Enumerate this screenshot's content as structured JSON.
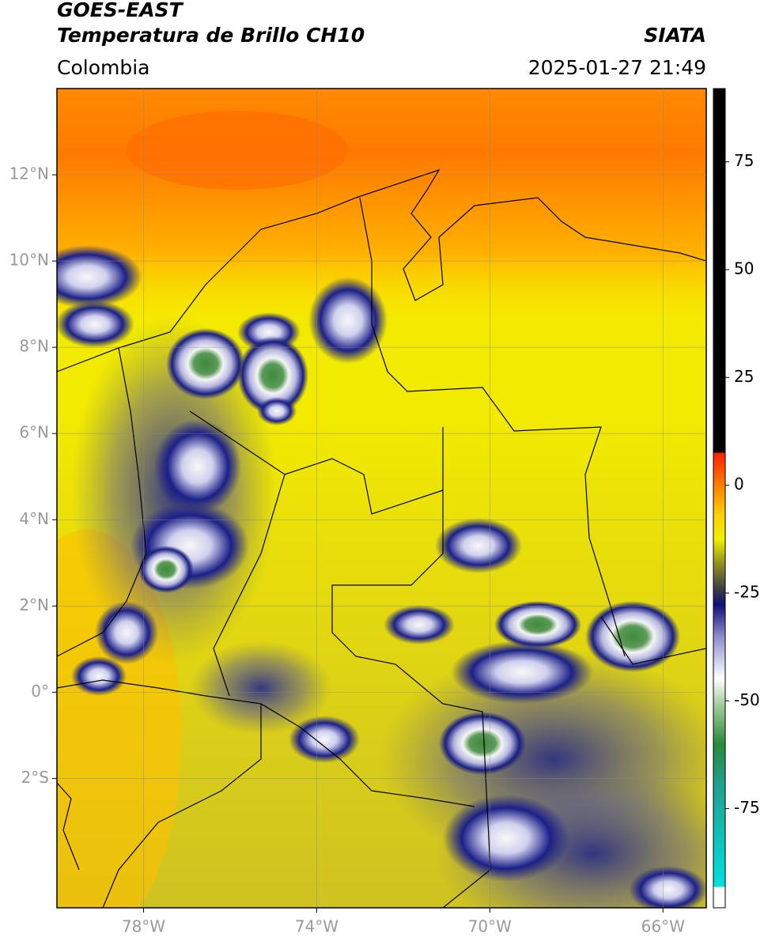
{
  "header": {
    "satellite": "GOES-EAST",
    "product": "Temperatura de Brillo CH10",
    "org": "SIATA",
    "region": "Colombia",
    "datetime": "2025-01-27 21:49"
  },
  "map": {
    "xlim": [
      -80,
      -65
    ],
    "ylim": [
      -5,
      14
    ],
    "grid": true,
    "xticks": [
      {
        "value": -78,
        "label": "78°W"
      },
      {
        "value": -74,
        "label": "74°W"
      },
      {
        "value": -70,
        "label": "70°W"
      },
      {
        "value": -66,
        "label": "66°W"
      }
    ],
    "yticks": [
      {
        "value": 12,
        "label": "12°N"
      },
      {
        "value": 10,
        "label": "10°N"
      },
      {
        "value": 8,
        "label": "8°N"
      },
      {
        "value": 6,
        "label": "6°N"
      },
      {
        "value": 4,
        "label": "4°N"
      },
      {
        "value": 2,
        "label": "2°N"
      },
      {
        "value": 0,
        "label": "0°"
      },
      {
        "value": -2,
        "label": "2°S"
      }
    ]
  },
  "colorbar": {
    "lim": [
      -98,
      92
    ],
    "ticks": [
      75,
      50,
      25,
      0,
      -25,
      -50,
      -75
    ]
  }
}
